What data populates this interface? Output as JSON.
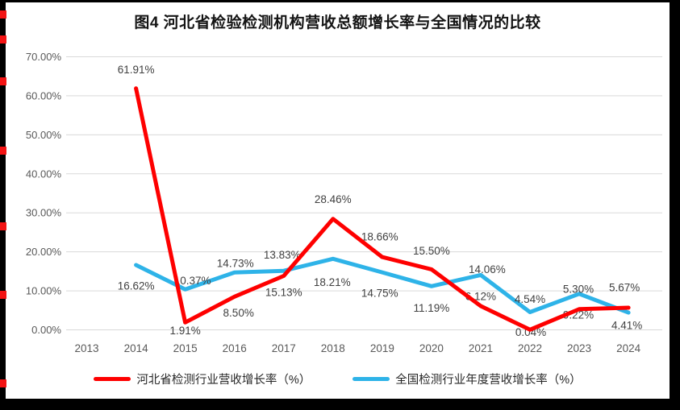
{
  "window": {
    "outer_bg": "#000000",
    "panel_bg": "#ffffff",
    "edge_marker_color": "#f31414"
  },
  "title": "图4  河北省检验检测机构营收总额增长率与全国情况的比较",
  "chart_data": {
    "type": "line",
    "title": "图4  河北省检验检测机构营收总额增长率与全国情况的比较",
    "x_labels": [
      "2013",
      "2014",
      "2015",
      "2016",
      "2017",
      "2018",
      "2019",
      "2020",
      "2021",
      "2022",
      "2023",
      "2024"
    ],
    "ylim": [
      0,
      70
    ],
    "ytick_labels": [
      "0.00%",
      "10.00%",
      "20.00%",
      "30.00%",
      "40.00%",
      "50.00%",
      "60.00%",
      "70.00%"
    ],
    "grid": "horizontal",
    "legend_position": "bottom",
    "axis_color": "#595959",
    "gridline_color": "#d9d9d9",
    "data_label_color": "#404040",
    "series": [
      {
        "name": "河北省检测行业营收增长率（%）",
        "color": "#fe0000",
        "first_x": "2014",
        "values": [
          61.91,
          1.91,
          8.5,
          13.83,
          28.46,
          18.66,
          15.5,
          6.12,
          0.04,
          5.3,
          5.67
        ],
        "point_labels": [
          "61.91%",
          "1.91%",
          "8.50%",
          "13.83%",
          "28.46%",
          "18.66%",
          "15.50%",
          "6.12%",
          "0.04%",
          "5.30%",
          "5.67%"
        ],
        "label_offsets": [
          [
            0,
            -23
          ],
          [
            0,
            10
          ],
          [
            5,
            20
          ],
          [
            -2,
            -26
          ],
          [
            0,
            -24
          ],
          [
            -3,
            -25
          ],
          [
            0,
            -23
          ],
          [
            0,
            -12
          ],
          [
            1,
            3
          ],
          [
            -1,
            -25
          ],
          [
            -5,
            -25
          ]
        ]
      },
      {
        "name": "全国检测行业年度营收增长率（%）",
        "color": "#2eb3e8",
        "first_x": "2014",
        "values": [
          16.62,
          10.37,
          14.73,
          15.13,
          18.21,
          14.75,
          11.19,
          14.06,
          4.54,
          9.22,
          4.41
        ],
        "point_labels": [
          "16.62%",
          "10.37%",
          "14.73%",
          "15.13%",
          "18.21%",
          "14.75%",
          "11.19%",
          "14.06%",
          "4.54%",
          "9.22%",
          "4.41%"
        ],
        "label_offsets": [
          [
            0,
            26
          ],
          [
            9,
            -11
          ],
          [
            1,
            -11
          ],
          [
            0,
            27
          ],
          [
            -1,
            29
          ],
          [
            -3,
            26
          ],
          [
            0,
            27
          ],
          [
            8,
            -7
          ],
          [
            0,
            -16
          ],
          [
            -1,
            26
          ],
          [
            -2,
            16
          ]
        ]
      }
    ]
  }
}
